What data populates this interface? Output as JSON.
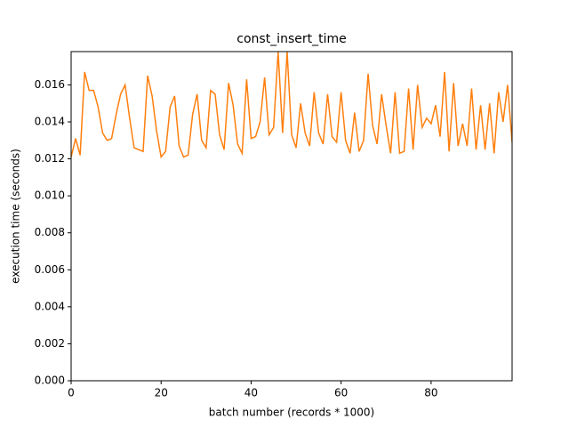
{
  "chart_data": {
    "type": "line",
    "title": "const_insert_time",
    "x_label": "batch number (records * 1000)",
    "y_label": "execution time (seconds)",
    "x": [
      0,
      1,
      2,
      3,
      4,
      5,
      6,
      7,
      8,
      9,
      10,
      11,
      12,
      13,
      14,
      15,
      16,
      17,
      18,
      19,
      20,
      21,
      22,
      23,
      24,
      25,
      26,
      27,
      28,
      29,
      30,
      31,
      32,
      33,
      34,
      35,
      36,
      37,
      38,
      39,
      40,
      41,
      42,
      43,
      44,
      45,
      46,
      47,
      48,
      49,
      50,
      51,
      52,
      53,
      54,
      55,
      56,
      57,
      58,
      59,
      60,
      61,
      62,
      63,
      64,
      65,
      66,
      67,
      68,
      69,
      70,
      71,
      72,
      73,
      74,
      75,
      76,
      77,
      78,
      79,
      80,
      81,
      82,
      83,
      84,
      85,
      86,
      87,
      88,
      89,
      90,
      91,
      92,
      93,
      94,
      95,
      96,
      97,
      98
    ],
    "series": [
      {
        "name": "const_insert_time",
        "color": "#ff7f0e",
        "values": [
          0.0121,
          0.0131,
          0.0122,
          0.0167,
          0.0157,
          0.0157,
          0.0148,
          0.0134,
          0.013,
          0.0131,
          0.0144,
          0.0155,
          0.016,
          0.0142,
          0.0126,
          0.0125,
          0.0124,
          0.0165,
          0.0154,
          0.0135,
          0.0121,
          0.0124,
          0.0148,
          0.0154,
          0.0127,
          0.0121,
          0.0122,
          0.0144,
          0.0155,
          0.013,
          0.0126,
          0.0157,
          0.0155,
          0.0133,
          0.0125,
          0.0161,
          0.0149,
          0.0128,
          0.0123,
          0.0163,
          0.0131,
          0.0132,
          0.014,
          0.0164,
          0.0133,
          0.0137,
          0.0178,
          0.0134,
          0.0178,
          0.0133,
          0.0126,
          0.015,
          0.0134,
          0.0127,
          0.0156,
          0.0134,
          0.0128,
          0.0155,
          0.0132,
          0.0129,
          0.0156,
          0.013,
          0.0123,
          0.0145,
          0.0124,
          0.013,
          0.0166,
          0.0138,
          0.0128,
          0.0155,
          0.0138,
          0.0123,
          0.0156,
          0.0123,
          0.0124,
          0.0158,
          0.0125,
          0.016,
          0.0137,
          0.0142,
          0.0139,
          0.0149,
          0.0132,
          0.0167,
          0.0124,
          0.0161,
          0.0127,
          0.0139,
          0.0127,
          0.0158,
          0.0125,
          0.0149,
          0.0125,
          0.015,
          0.0123,
          0.0156,
          0.014,
          0.016,
          0.0129
        ]
      }
    ],
    "xlim": [
      0,
      98
    ],
    "xticks": [
      0,
      20,
      40,
      60,
      80
    ],
    "ylim": [
      0,
      0.0178
    ],
    "yticks": [
      {
        "value": 0,
        "label": "0.000"
      },
      {
        "value": 0.002,
        "label": "0.002"
      },
      {
        "value": 0.004,
        "label": "0.004"
      },
      {
        "value": 0.006,
        "label": "0.006"
      },
      {
        "value": 0.008,
        "label": "0.008"
      },
      {
        "value": 0.01,
        "label": "0.010"
      },
      {
        "value": 0.012,
        "label": "0.012"
      },
      {
        "value": 0.014,
        "label": "0.014"
      },
      {
        "value": 0.016,
        "label": "0.016"
      }
    ],
    "grid": false
  }
}
